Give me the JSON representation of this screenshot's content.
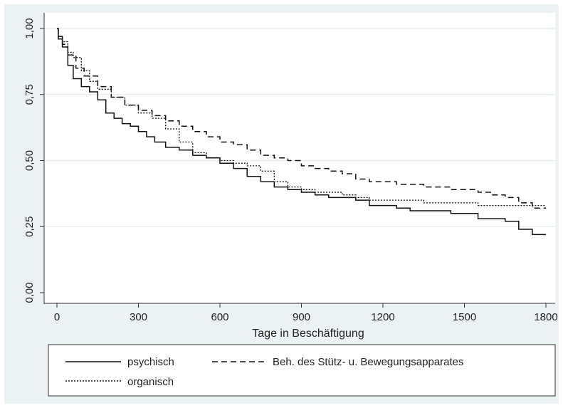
{
  "chart_data": {
    "type": "line",
    "xlabel": "Tage in Beschäftigung",
    "ylabel": "",
    "xlim": [
      0,
      1800
    ],
    "ylim": [
      0,
      1
    ],
    "xticks": [
      0,
      300,
      600,
      900,
      1200,
      1500,
      1800
    ],
    "xtick_labels": [
      "0",
      "300",
      "600",
      "900",
      "1200",
      "1500",
      "1800"
    ],
    "yticks": [
      0,
      0.25,
      0.5,
      0.75,
      1
    ],
    "ytick_labels": [
      "0,00",
      "0,25",
      "0,50",
      "0,75",
      "1,00"
    ],
    "grid": "horizontal",
    "legend_position": "bottom",
    "series": [
      {
        "name": "psychisch",
        "style": "solid",
        "points": [
          [
            0,
            1.0
          ],
          [
            5,
            0.96
          ],
          [
            20,
            0.93
          ],
          [
            40,
            0.86
          ],
          [
            60,
            0.81
          ],
          [
            90,
            0.78
          ],
          [
            120,
            0.76
          ],
          [
            150,
            0.73
          ],
          [
            180,
            0.68
          ],
          [
            210,
            0.66
          ],
          [
            240,
            0.64
          ],
          [
            270,
            0.63
          ],
          [
            300,
            0.61
          ],
          [
            330,
            0.59
          ],
          [
            360,
            0.57
          ],
          [
            400,
            0.55
          ],
          [
            450,
            0.54
          ],
          [
            500,
            0.52
          ],
          [
            550,
            0.51
          ],
          [
            600,
            0.49
          ],
          [
            650,
            0.47
          ],
          [
            700,
            0.44
          ],
          [
            750,
            0.42
          ],
          [
            800,
            0.4
          ],
          [
            850,
            0.39
          ],
          [
            900,
            0.38
          ],
          [
            950,
            0.37
          ],
          [
            1000,
            0.36
          ],
          [
            1050,
            0.36
          ],
          [
            1100,
            0.35
          ],
          [
            1150,
            0.33
          ],
          [
            1200,
            0.33
          ],
          [
            1250,
            0.32
          ],
          [
            1300,
            0.31
          ],
          [
            1350,
            0.31
          ],
          [
            1400,
            0.31
          ],
          [
            1450,
            0.3
          ],
          [
            1500,
            0.3
          ],
          [
            1550,
            0.28
          ],
          [
            1600,
            0.28
          ],
          [
            1650,
            0.27
          ],
          [
            1700,
            0.24
          ],
          [
            1750,
            0.22
          ],
          [
            1800,
            0.22
          ]
        ]
      },
      {
        "name": "Beh. des Stütz- u. Bewegungsapparates",
        "style": "dashed",
        "points": [
          [
            0,
            1.0
          ],
          [
            5,
            0.97
          ],
          [
            20,
            0.94
          ],
          [
            40,
            0.9
          ],
          [
            70,
            0.85
          ],
          [
            100,
            0.82
          ],
          [
            150,
            0.78
          ],
          [
            200,
            0.74
          ],
          [
            250,
            0.71
          ],
          [
            300,
            0.69
          ],
          [
            350,
            0.67
          ],
          [
            400,
            0.65
          ],
          [
            450,
            0.63
          ],
          [
            500,
            0.61
          ],
          [
            550,
            0.59
          ],
          [
            600,
            0.57
          ],
          [
            650,
            0.56
          ],
          [
            700,
            0.54
          ],
          [
            750,
            0.52
          ],
          [
            800,
            0.51
          ],
          [
            850,
            0.5
          ],
          [
            900,
            0.48
          ],
          [
            950,
            0.47
          ],
          [
            1000,
            0.46
          ],
          [
            1050,
            0.45
          ],
          [
            1100,
            0.43
          ],
          [
            1150,
            0.42
          ],
          [
            1200,
            0.42
          ],
          [
            1250,
            0.41
          ],
          [
            1300,
            0.41
          ],
          [
            1350,
            0.4
          ],
          [
            1400,
            0.4
          ],
          [
            1450,
            0.39
          ],
          [
            1500,
            0.39
          ],
          [
            1550,
            0.38
          ],
          [
            1600,
            0.37
          ],
          [
            1650,
            0.36
          ],
          [
            1700,
            0.34
          ],
          [
            1750,
            0.32
          ],
          [
            1800,
            0.32
          ]
        ]
      },
      {
        "name": "organisch",
        "style": "dotted",
        "points": [
          [
            0,
            1.0
          ],
          [
            5,
            0.97
          ],
          [
            20,
            0.95
          ],
          [
            40,
            0.91
          ],
          [
            60,
            0.89
          ],
          [
            90,
            0.84
          ],
          [
            120,
            0.8
          ],
          [
            150,
            0.77
          ],
          [
            200,
            0.74
          ],
          [
            250,
            0.71
          ],
          [
            300,
            0.68
          ],
          [
            350,
            0.66
          ],
          [
            400,
            0.62
          ],
          [
            450,
            0.57
          ],
          [
            500,
            0.53
          ],
          [
            550,
            0.51
          ],
          [
            600,
            0.5
          ],
          [
            650,
            0.49
          ],
          [
            700,
            0.48
          ],
          [
            750,
            0.46
          ],
          [
            800,
            0.42
          ],
          [
            850,
            0.4
          ],
          [
            900,
            0.39
          ],
          [
            950,
            0.38
          ],
          [
            1000,
            0.38
          ],
          [
            1050,
            0.37
          ],
          [
            1100,
            0.36
          ],
          [
            1150,
            0.35
          ],
          [
            1200,
            0.35
          ],
          [
            1250,
            0.35
          ],
          [
            1300,
            0.35
          ],
          [
            1350,
            0.34
          ],
          [
            1400,
            0.34
          ],
          [
            1450,
            0.34
          ],
          [
            1500,
            0.34
          ],
          [
            1550,
            0.33
          ],
          [
            1600,
            0.33
          ],
          [
            1650,
            0.33
          ],
          [
            1700,
            0.33
          ],
          [
            1750,
            0.33
          ],
          [
            1800,
            0.33
          ]
        ]
      }
    ]
  }
}
